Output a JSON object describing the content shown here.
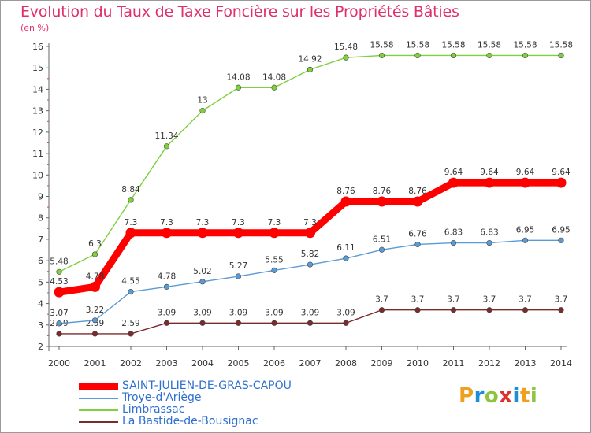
{
  "chart_data": {
    "type": "line",
    "title": "Evolution du Taux de Taxe Foncière sur les Propriétés Bâties",
    "ylabel": "(en %)",
    "xlabel": "",
    "ylim": [
      2,
      16
    ],
    "yticks": [
      "2",
      "3",
      "4",
      "5",
      "6",
      "7",
      "8",
      "9",
      "10",
      "11",
      "12",
      "13",
      "14",
      "15",
      "16"
    ],
    "categories": [
      "2000",
      "2001",
      "2002",
      "2003",
      "2004",
      "2005",
      "2006",
      "2007",
      "2008",
      "2009",
      "2010",
      "2011",
      "2012",
      "2013",
      "2014"
    ],
    "series": [
      {
        "name": "SAINT-JULIEN-DE-GRAS-CAPOU",
        "color": "#ff0000",
        "values": [
          4.53,
          4.78,
          7.3,
          7.3,
          7.3,
          7.3,
          7.3,
          7.3,
          8.76,
          8.76,
          8.76,
          9.64,
          9.64,
          9.64,
          9.64
        ],
        "labels": [
          "4.53",
          "4.78",
          "7.3",
          "7.3",
          "7.3",
          "7.3",
          "7.3",
          "7.3",
          "8.76",
          "8.76",
          "8.76",
          "9.64",
          "9.64",
          "9.64",
          "9.64"
        ]
      },
      {
        "name": "Troye-d'Ariège",
        "color": "#5b9bd5",
        "values": [
          3.07,
          3.22,
          4.55,
          4.78,
          5.02,
          5.27,
          5.55,
          5.82,
          6.11,
          6.51,
          6.76,
          6.83,
          6.83,
          6.95,
          6.95
        ],
        "labels": [
          "3.07",
          "3.22",
          "4.55",
          "4.78",
          "5.02",
          "5.27",
          "5.55",
          "5.82",
          "6.11",
          "6.51",
          "6.76",
          "6.83",
          "6.83",
          "6.95",
          "6.95"
        ]
      },
      {
        "name": "Limbrassac",
        "color": "#7fcf3f",
        "values": [
          5.48,
          6.3,
          8.84,
          11.34,
          13,
          14.08,
          14.08,
          14.92,
          15.48,
          15.58,
          15.58,
          15.58,
          15.58,
          15.58,
          15.58
        ],
        "labels": [
          "5.48",
          "6.3",
          "8.84",
          "11.34",
          "13",
          "14.08",
          "14.08",
          "14.92",
          "15.48",
          "15.58",
          "15.58",
          "15.58",
          "15.58",
          "15.58",
          "15.58"
        ]
      },
      {
        "name": "La Bastide-de-Bousignac",
        "color": "#7a2b2b",
        "values": [
          2.59,
          2.59,
          2.59,
          3.09,
          3.09,
          3.09,
          3.09,
          3.09,
          3.09,
          3.7,
          3.7,
          3.7,
          3.7,
          3.7,
          3.7
        ],
        "labels": [
          "2.59",
          "2.59",
          "2.59",
          "3.09",
          "3.09",
          "3.09",
          "3.09",
          "3.09",
          "3.09",
          "3.7",
          "3.7",
          "3.7",
          "3.7",
          "3.7",
          "3.7"
        ]
      }
    ],
    "grid": false,
    "legend": "bottom-left"
  },
  "logo": {
    "letters": [
      "P",
      "r",
      "o",
      "x",
      "i",
      "t",
      "i"
    ],
    "colors": [
      "#f0a020",
      "#1c8fd8",
      "#8cc63f",
      "#e02f2f",
      "#1c8fd8",
      "#f0a020",
      "#8cc63f"
    ]
  }
}
